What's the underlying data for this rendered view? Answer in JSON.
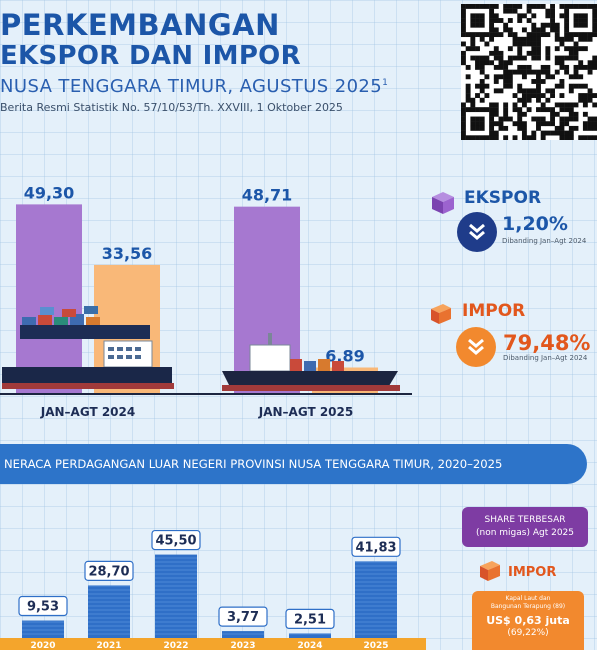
{
  "header": {
    "title_line1": "PERKEMBANGAN",
    "title_line2": "EKSPOR DAN IMPOR",
    "subtitle": "NUSA TENGGARA TIMUR, AGUSTUS 2025",
    "subtitle_sup": "1",
    "release": "Berita Resmi Statistik No. 57/10/53/Th. XXVIII, 1 Oktober 2025"
  },
  "colors": {
    "ekspor": "#a678d0",
    "impor": "#f9b878",
    "title_blue": "#1c56a8",
    "bar_blue": "#2f6fc7",
    "banner_blue": "#2d74c9",
    "impor_orange": "#f2892e"
  },
  "chart_data": [
    {
      "type": "bar",
      "categories": [
        "JAN–AGT 2024",
        "JAN–AGT 2025"
      ],
      "series": [
        {
          "name": "EKSPOR",
          "values": [
            49.3,
            48.71
          ]
        },
        {
          "name": "IMPOR",
          "values": [
            33.56,
            6.89
          ]
        }
      ],
      "value_labels": [
        [
          "49,30",
          "48,71"
        ],
        [
          "33,56",
          "6,89"
        ]
      ],
      "ylim": [
        0,
        52
      ]
    },
    {
      "type": "bar",
      "title": "NERACA PERDAGANGAN LUAR NEGERI PROVINSI NUSA TENGGARA TIMUR, 2020–2025",
      "categories": [
        "2020",
        "2021",
        "2022",
        "2023",
        "2024",
        "2025"
      ],
      "values": [
        9.53,
        28.7,
        45.5,
        3.77,
        2.51,
        41.83
      ],
      "value_labels": [
        "9,53",
        "28,70",
        "45,50",
        "3,77",
        "2,51",
        "41,83"
      ],
      "ylim": [
        0,
        48
      ]
    }
  ],
  "summary": {
    "ekspor": {
      "label": "EKSPOR",
      "change": "1,20%",
      "direction": "down",
      "compare": "Dibanding Jan–Agt 2024"
    },
    "impor": {
      "label": "IMPOR",
      "change": "79,48%",
      "direction": "down",
      "compare": "Dibanding Jan–Agt 2024"
    }
  },
  "share": {
    "title_line1": "SHARE TERBESAR",
    "title_line2": "(non migas) Agt 2025",
    "label": "IMPOR",
    "item_line1": "Kapal Laut dan",
    "item_line2": "Bangunan Terapung (89)",
    "value": "US$ 0,63 juta",
    "percent": "(69,22%)"
  }
}
